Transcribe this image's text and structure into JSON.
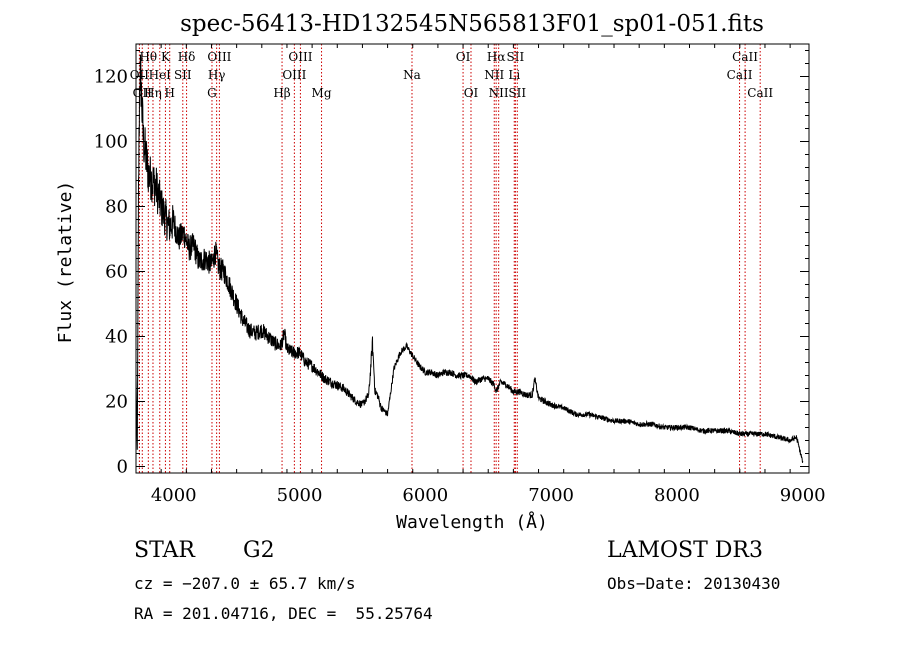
{
  "chart_data": {
    "type": "line",
    "title": "spec-56413-HD132545N565813F01_sp01-051.fits",
    "xlabel": "Wavelength (Å)",
    "ylabel": "Flux (relative)",
    "xlim": [
      3700,
      9050
    ],
    "ylim": [
      -2,
      130
    ],
    "xticks": [
      4000,
      5000,
      6000,
      7000,
      8000,
      9000
    ],
    "yticks": [
      0,
      20,
      40,
      60,
      80,
      100,
      120
    ],
    "grid": false,
    "series": [
      {
        "name": "spectrum",
        "x": [
          3700,
          3710,
          3720,
          3730,
          3740,
          3750,
          3760,
          3780,
          3800,
          3830,
          3860,
          3900,
          3930,
          3960,
          4000,
          4040,
          4080,
          4120,
          4160,
          4200,
          4250,
          4300,
          4330,
          4360,
          4400,
          4450,
          4500,
          4550,
          4600,
          4650,
          4700,
          4750,
          4800,
          4850,
          4880,
          4900,
          4950,
          5000,
          5050,
          5100,
          5150,
          5200,
          5250,
          5300,
          5350,
          5400,
          5450,
          5500,
          5550,
          5580,
          5600,
          5620,
          5650,
          5700,
          5750,
          5800,
          5850,
          5900,
          5950,
          6000,
          6050,
          6100,
          6150,
          6200,
          6250,
          6300,
          6350,
          6400,
          6450,
          6500,
          6550,
          6563,
          6600,
          6650,
          6700,
          6750,
          6800,
          6850,
          6870,
          6900,
          6950,
          7000,
          7100,
          7200,
          7300,
          7400,
          7500,
          7600,
          7700,
          7800,
          7900,
          8000,
          8100,
          8200,
          8300,
          8400,
          8500,
          8600,
          8700,
          8800,
          8900,
          8950,
          8970,
          8990,
          9000
        ],
        "y": [
          27,
          5,
          85,
          122,
          118,
          108,
          100,
          95,
          90,
          88,
          86,
          80,
          77,
          74,
          75,
          70,
          72,
          67,
          68,
          63,
          64,
          62,
          66,
          61,
          60,
          55,
          50,
          45,
          42,
          41,
          42,
          40,
          38,
          37,
          41,
          36,
          35,
          35,
          32,
          31,
          29,
          27,
          26,
          25,
          24,
          22,
          20,
          19,
          22,
          38,
          23,
          22,
          18,
          16,
          30,
          35,
          37,
          34,
          31,
          29,
          29,
          28,
          29,
          29,
          28,
          28,
          28,
          26,
          27,
          27,
          25,
          23,
          26,
          25,
          23,
          23,
          22,
          22,
          27,
          21,
          20,
          19,
          18,
          16,
          16,
          15,
          14,
          14,
          13,
          13,
          12,
          12,
          12,
          11,
          11,
          11,
          10,
          10,
          10,
          9,
          8,
          9,
          6,
          3,
          1
        ]
      }
    ],
    "lines": [
      {
        "wave": 3727,
        "label": "OII",
        "row": 1
      },
      {
        "wave": 3750,
        "label": "OII",
        "row": 2
      },
      {
        "wave": 3798,
        "label": "Hθ",
        "row": 0
      },
      {
        "wave": 3835,
        "label": "Hη",
        "row": 2
      },
      {
        "wave": 3889,
        "label": "HeI",
        "row": 1
      },
      {
        "wave": 3934,
        "label": "K",
        "row": 0
      },
      {
        "wave": 3968,
        "label": "H",
        "row": 2
      },
      {
        "wave": 4072,
        "label": "SII",
        "row": 1
      },
      {
        "wave": 4102,
        "label": "Hδ",
        "row": 0
      },
      {
        "wave": 4304,
        "label": "G",
        "row": 2
      },
      {
        "wave": 4341,
        "label": "Hγ",
        "row": 1
      },
      {
        "wave": 4363,
        "label": "OIII",
        "row": 0
      },
      {
        "wave": 4861,
        "label": "Hβ",
        "row": 2
      },
      {
        "wave": 4959,
        "label": "OIII",
        "row": 1
      },
      {
        "wave": 5007,
        "label": "OIII",
        "row": 0
      },
      {
        "wave": 5175,
        "label": "Mg",
        "row": 2
      },
      {
        "wave": 5894,
        "label": "Na",
        "row": 1
      },
      {
        "wave": 6300,
        "label": "OI",
        "row": 0
      },
      {
        "wave": 6363,
        "label": "OI",
        "row": 2
      },
      {
        "wave": 6548,
        "label": "NII",
        "row": 1
      },
      {
        "wave": 6563,
        "label": "Hα",
        "row": 0
      },
      {
        "wave": 6583,
        "label": "NII",
        "row": 2
      },
      {
        "wave": 6707,
        "label": "Li",
        "row": 1
      },
      {
        "wave": 6716,
        "label": "SII",
        "row": 0
      },
      {
        "wave": 6731,
        "label": "SII",
        "row": 2
      },
      {
        "wave": 8498,
        "label": "CaII",
        "row": 1
      },
      {
        "wave": 8542,
        "label": "CaII",
        "row": 0
      },
      {
        "wave": 8662,
        "label": "CaII",
        "row": 2
      }
    ],
    "colors": {
      "spectrum": "#000000",
      "lines": "#cc0000",
      "axes": "#000000"
    }
  },
  "info": {
    "object_class": "STAR",
    "subclass": "G2",
    "survey": "LAMOST DR3",
    "cz": "cz = −207.0 ± 65.7 km/s",
    "obs_date": "Obs−Date: 20130430",
    "radec": "RA = 201.04716, DEC =  55.25764"
  }
}
